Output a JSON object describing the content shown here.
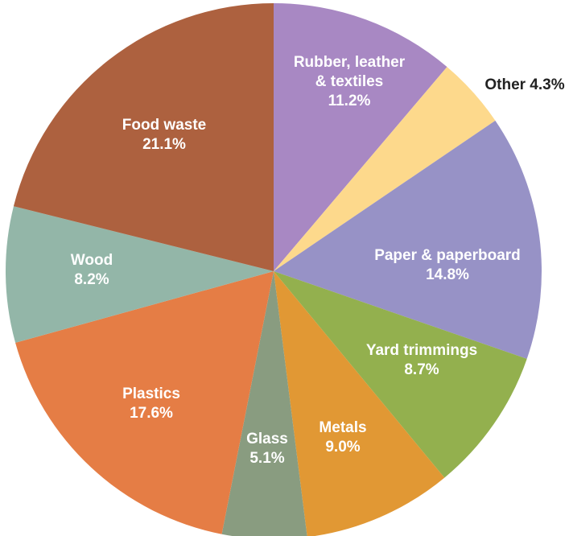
{
  "chart_data": {
    "type": "pie",
    "start_angle_deg": 0,
    "direction": "clockwise",
    "slices": [
      {
        "name": "Rubber, leather & textiles",
        "label_lines": [
          "Rubber, leather",
          "& textiles"
        ],
        "value": 11.2,
        "value_label": "11.2%",
        "color": "#A888C3"
      },
      {
        "name": "Other",
        "label_lines": [
          "Other 4.3%"
        ],
        "value": 4.3,
        "value_label": "",
        "color": "#FDD98C"
      },
      {
        "name": "Paper & paperboard",
        "label_lines": [
          "Paper & paperboard"
        ],
        "value": 14.8,
        "value_label": "14.8%",
        "color": "#9792C6"
      },
      {
        "name": "Yard trimmings",
        "label_lines": [
          "Yard trimmings"
        ],
        "value": 8.7,
        "value_label": "8.7%",
        "color": "#93B04E"
      },
      {
        "name": "Metals",
        "label_lines": [
          "Metals"
        ],
        "value": 9.0,
        "value_label": "9.0%",
        "color": "#E19834"
      },
      {
        "name": "Glass",
        "label_lines": [
          "Glass"
        ],
        "value": 5.1,
        "value_label": "5.1%",
        "color": "#899C80"
      },
      {
        "name": "Plastics",
        "label_lines": [
          "Plastics"
        ],
        "value": 17.6,
        "value_label": "17.6%",
        "color": "#E57D45"
      },
      {
        "name": "Wood",
        "label_lines": [
          "Wood"
        ],
        "value": 8.2,
        "value_label": "8.2%",
        "color": "#93B6A8"
      },
      {
        "name": "Food waste",
        "label_lines": [
          "Food waste"
        ],
        "value": 21.1,
        "value_label": "21.1%",
        "color": "#AD613F"
      }
    ],
    "title": "",
    "legend": "none"
  }
}
